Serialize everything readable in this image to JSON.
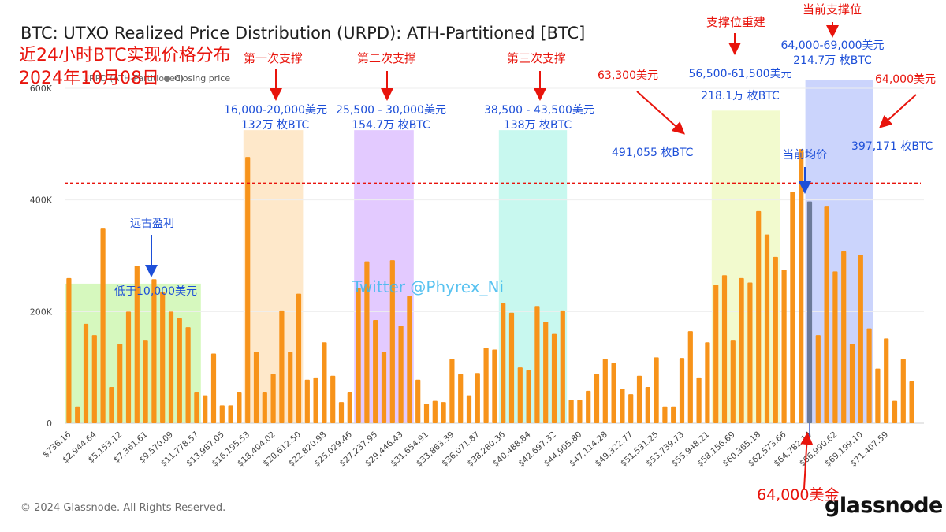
{
  "title": "BTC: UTXO Realized Price Distribution (URPD): ATH-Partitioned [BTC]",
  "legend": {
    "closing_price_label": "Closing price",
    "series_label": "URPD (ATH-Partitioned)"
  },
  "copyright": "© 2024 Glassnode. All Rights Reserved.",
  "logo": "glassnode",
  "watermark": "Twitter @Phyrex_Ni",
  "colors": {
    "bar": "#f7931a",
    "highlight_bar": "#6c7a99",
    "ref_line": "#e8140c",
    "zone_green": "#c8f5a8",
    "zone_orange": "#fde0b8",
    "zone_purple": "#d9b8ff",
    "zone_cyan": "#b5f5ea",
    "zone_yellow": "#eef8bd",
    "zone_blue": "#b9c6fb"
  },
  "chart_data": {
    "type": "bar",
    "ylim": [
      0,
      600000
    ],
    "y_ticks": [
      "0",
      "200K",
      "400K",
      "600K"
    ],
    "x_tick_labels": [
      "$736.16",
      "$2,944.64",
      "$5,153.12",
      "$7,361.61",
      "$9,570.09",
      "$11,778.57",
      "$13,987.05",
      "$16,195.53",
      "$18,404.02",
      "$20,612.50",
      "$22,820.98",
      "$25,029.46",
      "$27,237.95",
      "$29,446.43",
      "$31,654.91",
      "$33,863.39",
      "$36,071.87",
      "$38,280.36",
      "$40,488.84",
      "$42,697.32",
      "$44,905.80",
      "$47,114.28",
      "$49,322.77",
      "$51,531.25",
      "$53,739.73",
      "$55,948.21",
      "$58,156.69",
      "$60,365.18",
      "$62,573.66",
      "$64,782.14",
      "$66,990.62",
      "$69,199.10",
      "$71,407.59"
    ],
    "values": [
      260000,
      30000,
      178000,
      158000,
      350000,
      65000,
      142000,
      200000,
      282000,
      148000,
      258000,
      235000,
      200000,
      188000,
      172000,
      55000,
      50000,
      125000,
      32000,
      32000,
      55000,
      477000,
      128000,
      55000,
      88000,
      202000,
      128000,
      232000,
      78000,
      82000,
      145000,
      85000,
      38000,
      55000,
      242000,
      290000,
      185000,
      128000,
      292000,
      175000,
      228000,
      78000,
      35000,
      40000,
      38000,
      115000,
      88000,
      50000,
      90000,
      135000,
      132000,
      215000,
      198000,
      100000,
      95000,
      210000,
      182000,
      160000,
      202000,
      42000,
      42000,
      58000,
      88000,
      115000,
      108000,
      62000,
      52000,
      85000,
      65000,
      118000,
      30000,
      30000,
      117000,
      165000,
      82000,
      145000,
      248000,
      265000,
      148000,
      260000,
      252000,
      380000,
      338000,
      298000,
      275000,
      415000,
      491055,
      397171,
      158000,
      388000,
      272000,
      308000,
      142000,
      302000,
      170000,
      98000,
      152000,
      40000,
      115000,
      75000
    ],
    "highlight_index": 87,
    "reference_line": 430000
  },
  "annotations": {
    "header1": "近24小时BTC实现价格分布",
    "header2": "2024年10月08日",
    "support1_title": "第一次支撑",
    "support1_range": "16,000-20,000美元",
    "support1_amount": "132万 枚BTC",
    "support2_title": "第二次支撑",
    "support2_range": "25,500 - 30,000美元",
    "support2_amount": "154.7万 枚BTC",
    "support3_title": "第三次支撑",
    "support3_range": "38,500 - 43,500美元",
    "support3_amount": "138万 枚BTC",
    "rebuild_title": "支撑位重建",
    "rebuild_range": "56,500-61,500美元",
    "rebuild_amount": "218.1万 枚BTC",
    "current_title": "当前支撑位",
    "current_range": "64,000-69,000美元",
    "current_amount": "214.7万 枚BTC",
    "price_63300": "63,300美元",
    "amount_491055": "491,055 枚BTC",
    "price_64000": "64,000美元",
    "amount_397171": "397,171 枚BTC",
    "avg_price": "当前均价",
    "ancient_profit": "远古盈利",
    "below_10000": "低于10,000美元",
    "bottom_64000": "64,000美金"
  }
}
